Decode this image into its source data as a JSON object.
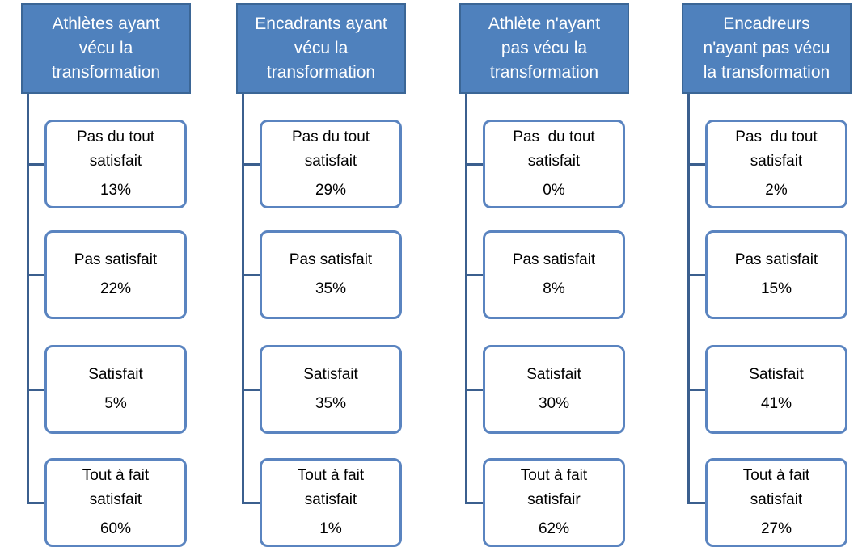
{
  "columns": [
    {
      "title_lines": [
        "Athlètes ayant",
        "vécu la",
        "transformation"
      ],
      "items": [
        {
          "label_lines": [
            "Pas du tout",
            "satisfait"
          ],
          "value": "13%"
        },
        {
          "label_lines": [
            "Pas satisfait"
          ],
          "value": "22%"
        },
        {
          "label_lines": [
            "Satisfait"
          ],
          "value": "5%"
        },
        {
          "label_lines": [
            "Tout à fait",
            "satisfait"
          ],
          "value": "60%"
        }
      ]
    },
    {
      "title_lines": [
        "Encadrants ayant",
        "vécu la",
        "transformation"
      ],
      "items": [
        {
          "label_lines": [
            "Pas du tout",
            "satisfait"
          ],
          "value": "29%"
        },
        {
          "label_lines": [
            "Pas satisfait"
          ],
          "value": "35%"
        },
        {
          "label_lines": [
            "Satisfait"
          ],
          "value": "35%"
        },
        {
          "label_lines": [
            "Tout à fait",
            "satisfait"
          ],
          "value": "1%"
        }
      ]
    },
    {
      "title_lines": [
        "Athlète n'ayant",
        "pas vécu la",
        "transformation"
      ],
      "items": [
        {
          "label_lines": [
            "Pas  du tout",
            "satisfait"
          ],
          "value": "0%"
        },
        {
          "label_lines": [
            "Pas satisfait"
          ],
          "value": "8%"
        },
        {
          "label_lines": [
            "Satisfait"
          ],
          "value": "30%"
        },
        {
          "label_lines": [
            "Tout à fait",
            "satisfair"
          ],
          "value": "62%"
        }
      ]
    },
    {
      "title_lines": [
        "Encadreurs",
        "n'ayant pas vécu",
        "la transformation"
      ],
      "items": [
        {
          "label_lines": [
            "Pas  du tout",
            "satisfait"
          ],
          "value": "2%"
        },
        {
          "label_lines": [
            "Pas satisfait"
          ],
          "value": "15%"
        },
        {
          "label_lines": [
            "Satisfait"
          ],
          "value": "41%"
        },
        {
          "label_lines": [
            "Tout à fait",
            "satisfait"
          ],
          "value": "27%"
        }
      ]
    }
  ]
}
